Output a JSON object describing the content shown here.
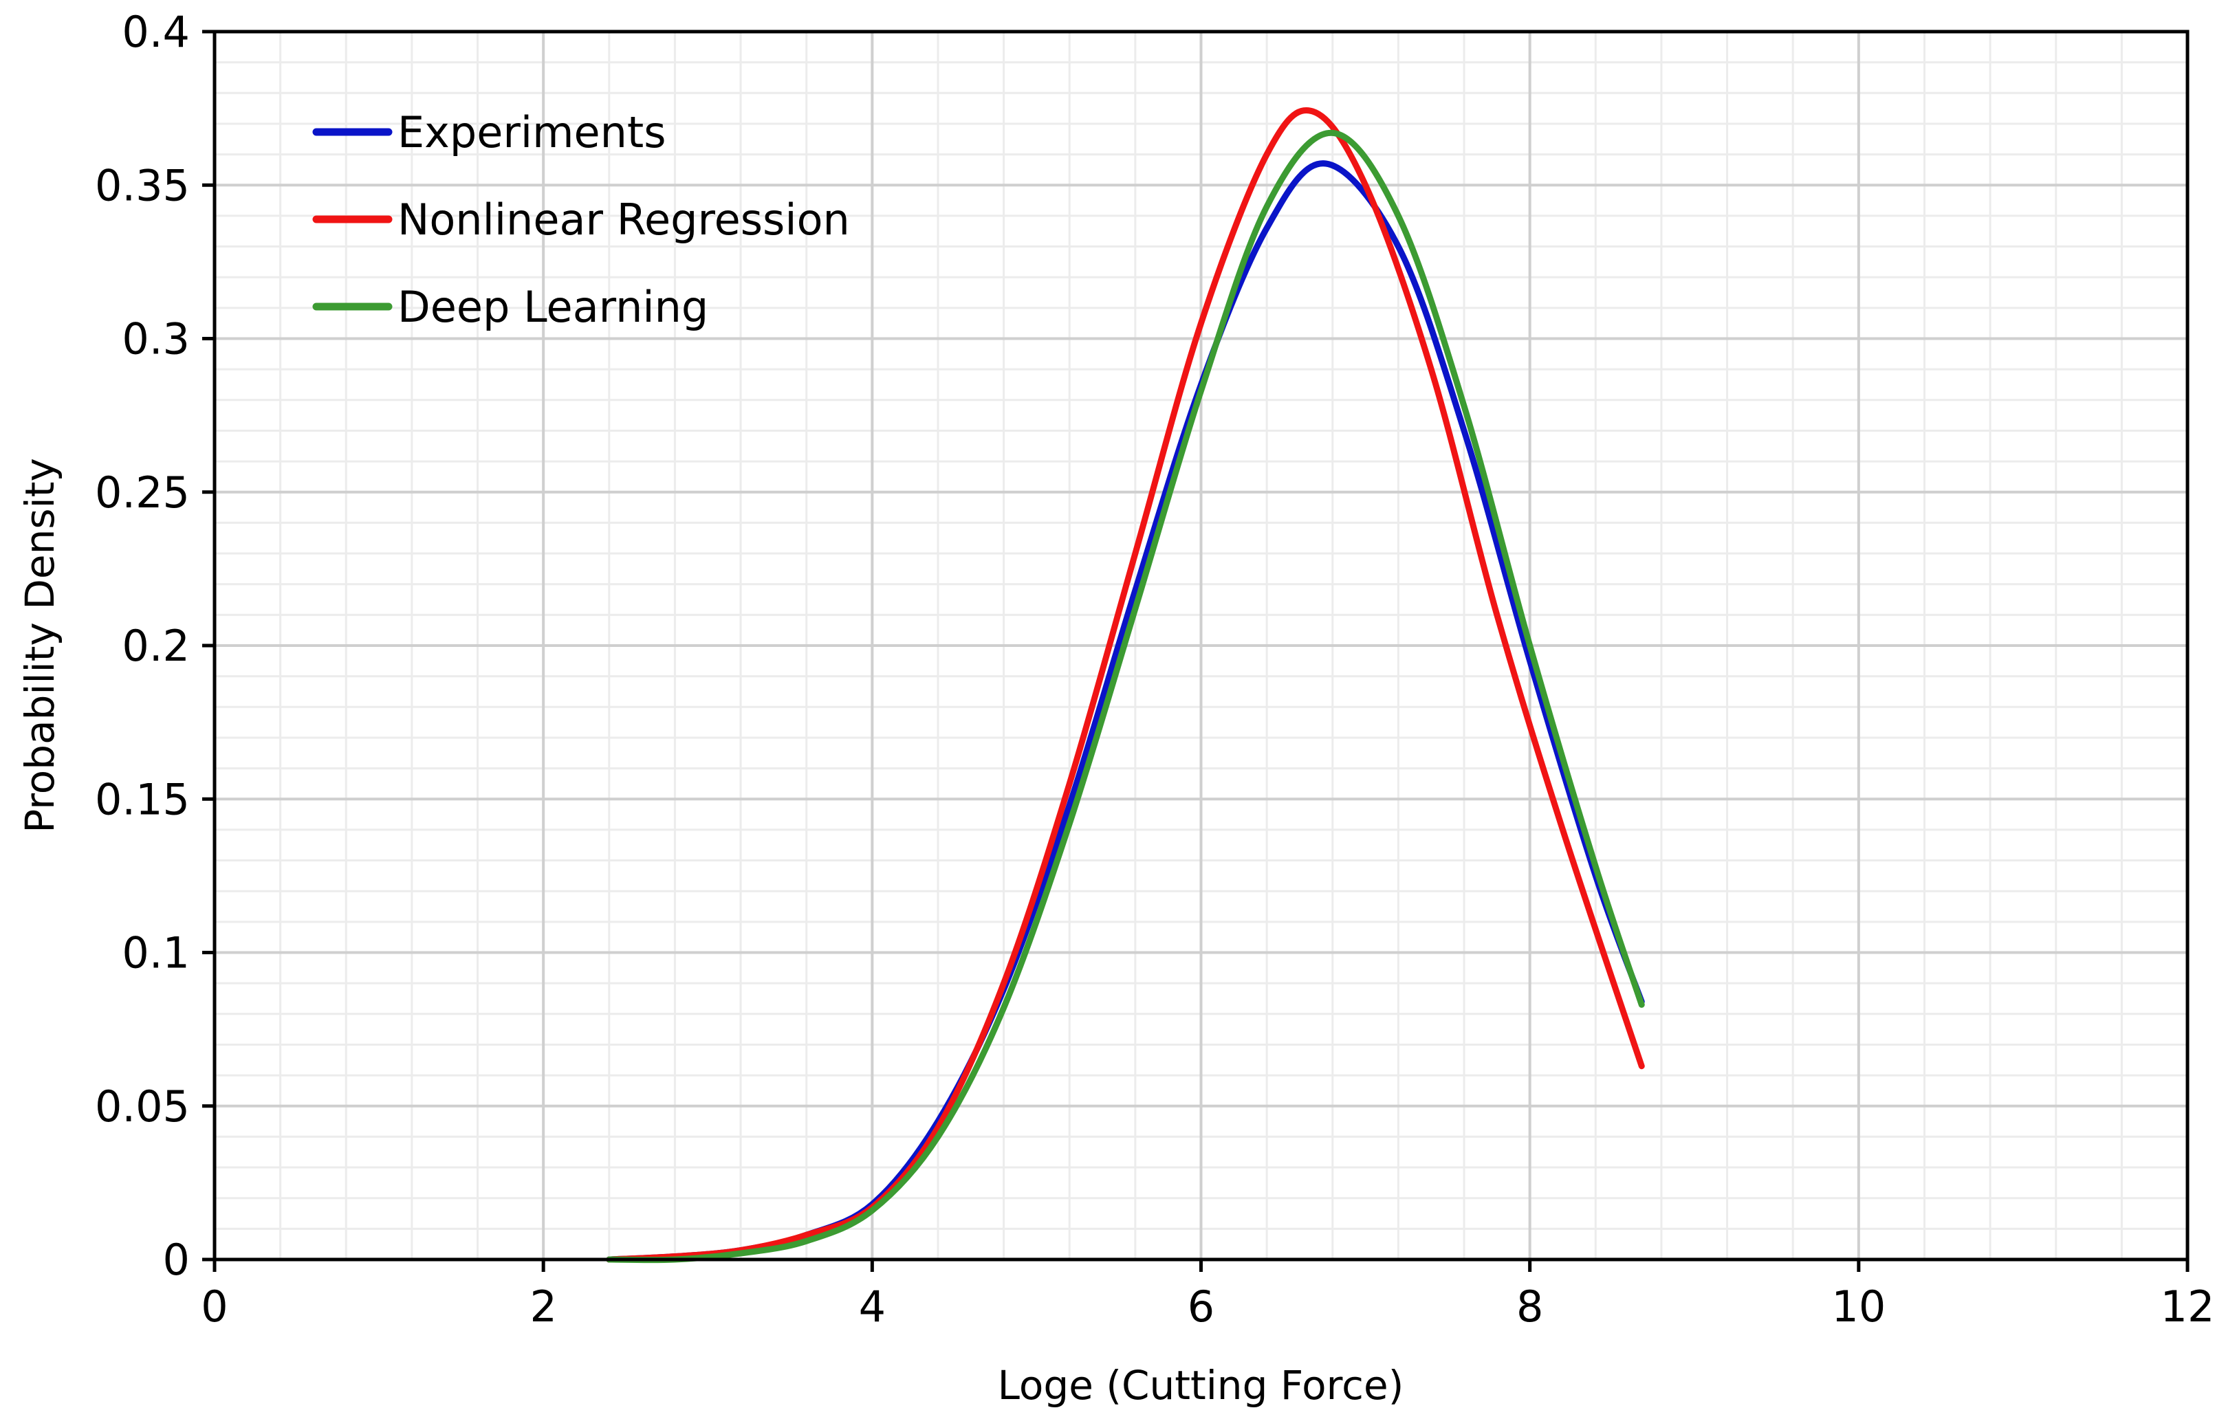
{
  "chart_data": {
    "type": "line",
    "title": "",
    "xlabel": "Loge (Cutting Force)",
    "ylabel": "Probability Density",
    "xlim": [
      0,
      12
    ],
    "ylim": [
      0,
      0.4
    ],
    "x_ticks": [
      0,
      2,
      4,
      6,
      8,
      10,
      12
    ],
    "x_tick_labels": [
      "0",
      "2",
      "4",
      "6",
      "8",
      "10",
      "12"
    ],
    "y_ticks": [
      0,
      0.05,
      0.1,
      0.15,
      0.2,
      0.25,
      0.3,
      0.35,
      0.4
    ],
    "y_tick_labels": [
      "0",
      "0.05",
      "0.1",
      "0.15",
      "0.2",
      "0.25",
      "0.3",
      "0.35",
      "0.4"
    ],
    "grid": {
      "major": true,
      "minor": true
    },
    "legend_position": "top-left",
    "series": [
      {
        "name": "Experiments",
        "color": "#0a14c8",
        "x": [
          2.4,
          2.8,
          3.2,
          3.6,
          4.0,
          4.4,
          4.8,
          5.2,
          5.6,
          6.0,
          6.4,
          6.76,
          7.2,
          7.6,
          8.0,
          8.4,
          8.68
        ],
        "y": [
          0.0,
          0.001,
          0.003,
          0.008,
          0.018,
          0.045,
          0.088,
          0.148,
          0.218,
          0.285,
          0.336,
          0.357,
          0.33,
          0.27,
          0.195,
          0.125,
          0.084
        ]
      },
      {
        "name": "Nonlinear Regression",
        "color": "#f01414",
        "x": [
          2.4,
          2.8,
          3.2,
          3.6,
          4.0,
          4.4,
          4.8,
          5.2,
          5.6,
          6.0,
          6.4,
          6.68,
          7.0,
          7.4,
          7.8,
          8.2,
          8.68
        ],
        "y": [
          0.0,
          0.001,
          0.003,
          0.008,
          0.017,
          0.043,
          0.09,
          0.155,
          0.23,
          0.305,
          0.36,
          0.374,
          0.35,
          0.29,
          0.21,
          0.14,
          0.063
        ]
      },
      {
        "name": "Deep Learning",
        "color": "#3c9b32",
        "x": [
          2.4,
          2.8,
          3.2,
          3.6,
          4.0,
          4.4,
          4.8,
          5.2,
          5.6,
          6.0,
          6.4,
          6.8,
          7.2,
          7.6,
          8.0,
          8.4,
          8.68
        ],
        "y": [
          0.0,
          0.0,
          0.002,
          0.006,
          0.016,
          0.04,
          0.082,
          0.142,
          0.212,
          0.283,
          0.343,
          0.367,
          0.34,
          0.278,
          0.2,
          0.128,
          0.083
        ]
      }
    ]
  }
}
